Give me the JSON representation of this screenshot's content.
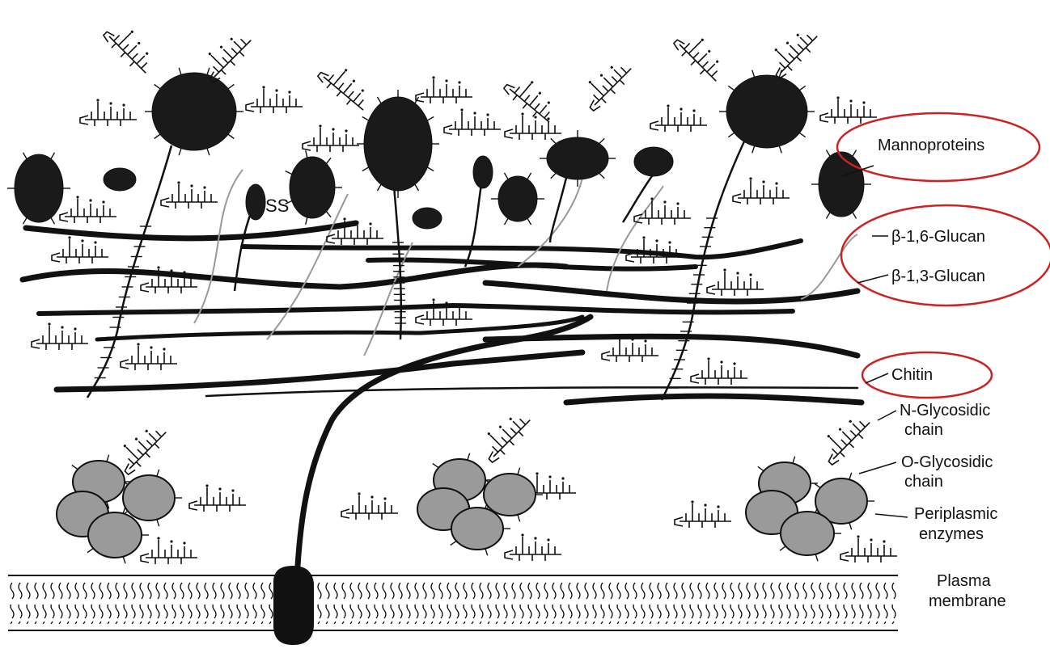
{
  "labels": {
    "mannoproteins": "Mannoproteins",
    "beta16": "β-1,6-Glucan",
    "beta13": "β-1,3-Glucan",
    "chitin": "Chitin",
    "nglyco_1": "N-Glycosidic",
    "nglyco_2": "chain",
    "oglyco_1": "O-Glycosidic",
    "oglyco_2": "chain",
    "peri_1": "Periplasmic",
    "peri_2": "enzymes",
    "pm_1": "Plasma",
    "pm_2": "membrane",
    "ss": "SS"
  },
  "colors": {
    "ink": "#111111",
    "highlight": "#cc2222",
    "enzyme_fill": "#9a9a9a",
    "protein_fill": "#1a1a1a"
  }
}
